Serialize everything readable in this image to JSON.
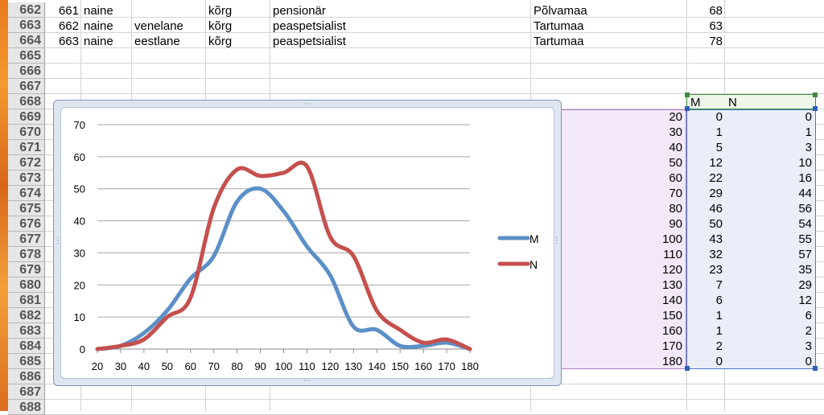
{
  "rows": [
    "662",
    "663",
    "664",
    "665",
    "666",
    "667",
    "668",
    "669",
    "670",
    "671",
    "672",
    "673",
    "674",
    "675",
    "676",
    "677",
    "678",
    "679",
    "680",
    "681",
    "682",
    "683",
    "684",
    "685",
    "686",
    "687",
    "688"
  ],
  "records": [
    {
      "id": "661",
      "gender": "naine",
      "nationality": "",
      "education": "kõrg",
      "occupation": "pensionär",
      "county": "Põlvamaa",
      "age": "68"
    },
    {
      "id": "662",
      "gender": "naine",
      "nationality": "venelane",
      "education": "kõrg",
      "occupation": "peaspetsialist",
      "county": "Tartumaa",
      "age": "63"
    },
    {
      "id": "663",
      "gender": "naine",
      "nationality": "eestlane",
      "education": "kõrg",
      "occupation": "peaspetsialist",
      "county": "Tartumaa",
      "age": "78"
    }
  ],
  "table": {
    "headers": [
      "M",
      "N"
    ],
    "rows": [
      {
        "x": "20",
        "m": "0",
        "n": "0"
      },
      {
        "x": "30",
        "m": "1",
        "n": "1"
      },
      {
        "x": "40",
        "m": "5",
        "n": "3"
      },
      {
        "x": "50",
        "m": "12",
        "n": "10"
      },
      {
        "x": "60",
        "m": "22",
        "n": "16"
      },
      {
        "x": "70",
        "m": "29",
        "n": "44"
      },
      {
        "x": "80",
        "m": "46",
        "n": "56"
      },
      {
        "x": "90",
        "m": "50",
        "n": "54"
      },
      {
        "x": "100",
        "m": "43",
        "n": "55"
      },
      {
        "x": "110",
        "m": "32",
        "n": "57"
      },
      {
        "x": "120",
        "m": "23",
        "n": "35"
      },
      {
        "x": "130",
        "m": "7",
        "n": "29"
      },
      {
        "x": "140",
        "m": "6",
        "n": "12"
      },
      {
        "x": "150",
        "m": "1",
        "n": "6"
      },
      {
        "x": "160",
        "m": "1",
        "n": "2"
      },
      {
        "x": "170",
        "m": "2",
        "n": "3"
      },
      {
        "x": "180",
        "m": "0",
        "n": "0"
      }
    ]
  },
  "chart_data": {
    "type": "line",
    "x": [
      20,
      30,
      40,
      50,
      60,
      70,
      80,
      90,
      100,
      110,
      120,
      130,
      140,
      150,
      160,
      170,
      180
    ],
    "series": [
      {
        "name": "M",
        "color": "#5b8fc7",
        "values": [
          0,
          1,
          5,
          12,
          22,
          29,
          46,
          50,
          43,
          32,
          23,
          7,
          6,
          1,
          1,
          2,
          0
        ]
      },
      {
        "name": "N",
        "color": "#c4504d",
        "values": [
          0,
          1,
          3,
          10,
          16,
          44,
          56,
          54,
          55,
          57,
          35,
          29,
          12,
          6,
          2,
          3,
          0
        ]
      }
    ],
    "ylim": [
      0,
      70
    ],
    "yticks": [
      0,
      10,
      20,
      30,
      40,
      50,
      60,
      70
    ],
    "xticks": [
      20,
      30,
      40,
      50,
      60,
      70,
      80,
      90,
      100,
      110,
      120,
      130,
      140,
      150,
      160,
      170,
      180
    ],
    "xlim": [
      20,
      180
    ],
    "grid": true,
    "legend_position": "right",
    "smooth": true
  }
}
